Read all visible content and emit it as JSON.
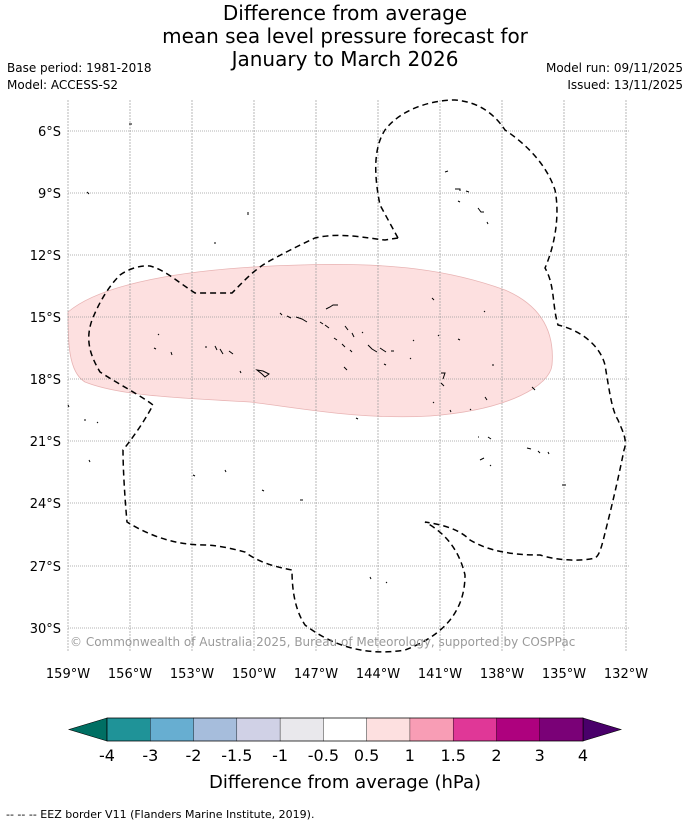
{
  "title": {
    "line1": "Difference from average",
    "line2": "mean sea level pressure forecast for",
    "line3": "January to March 2026"
  },
  "meta": {
    "base_period": "Base period: 1981-2018",
    "model": "Model: ACCESS-S2",
    "model_run": "Model run: 09/11/2025",
    "issued": "Issued: 13/11/2025"
  },
  "map": {
    "lat_labels": [
      "6°S",
      "9°S",
      "12°S",
      "15°S",
      "18°S",
      "21°S",
      "24°S",
      "27°S",
      "30°S"
    ],
    "lon_labels": [
      "159°W",
      "156°W",
      "153°W",
      "150°W",
      "147°W",
      "144°W",
      "141°W",
      "138°W",
      "135°W",
      "132°W"
    ],
    "copyright": "© Commonwealth of Australia 2025, Bureau of Meteorology, supported by COSPPac",
    "anomaly_color": "#fde0e0",
    "grid_color": "#9a9a9a"
  },
  "colorbar": {
    "title": "Difference from average (hPa)",
    "tick_labels": [
      "-4",
      "-3",
      "-2",
      "-1.5",
      "-1",
      "-0.5",
      "0.5",
      "1",
      "1.5",
      "2",
      "3",
      "4"
    ],
    "colors": [
      "#006f63",
      "#1f9398",
      "#67aed1",
      "#a6bddc",
      "#d0d1e6",
      "#e9e8ec",
      "#ffffff",
      "#fde0e0",
      "#f89db5",
      "#e03797",
      "#ae017e",
      "#7a0177",
      "#49006a"
    ]
  },
  "footer": {
    "legend": "--  --  -- EEZ border V11 (Flanders Marine Institute, 2019)."
  }
}
